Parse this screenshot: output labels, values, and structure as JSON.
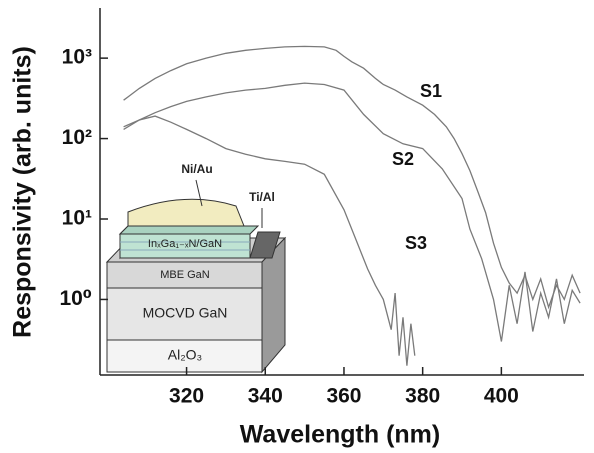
{
  "chart_data": {
    "type": "line",
    "x_label": "Wavelength (nm)",
    "y_label": "Responsivity (arb. units)",
    "log_y": true,
    "xlim": [
      298,
      421
    ],
    "ylim": [
      0.115,
      4200
    ],
    "xticks": [
      320,
      340,
      360,
      380,
      400
    ],
    "yticks": [
      {
        "value": 1,
        "label": "10⁰"
      },
      {
        "value": 10,
        "label": "10¹"
      },
      {
        "value": 100,
        "label": "10²"
      },
      {
        "value": 1000,
        "label": "10³"
      }
    ],
    "series": [
      {
        "name": "S1",
        "color": "#7a7a7a",
        "x": [
          304,
          308,
          312,
          316,
          320,
          325,
          330,
          335,
          340,
          345,
          350,
          355,
          358,
          360,
          362,
          365,
          368,
          370,
          373,
          376,
          380,
          383,
          386,
          388,
          390,
          392,
          394,
          396,
          398,
          400,
          402,
          404,
          406,
          408,
          410,
          412,
          414,
          416,
          418,
          420
        ],
        "values": [
          300,
          420,
          560,
          700,
          850,
          1000,
          1150,
          1250,
          1320,
          1380,
          1400,
          1380,
          1250,
          1050,
          900,
          750,
          560,
          470,
          400,
          330,
          260,
          200,
          140,
          100,
          65,
          40,
          22,
          12,
          5,
          2.5,
          1.6,
          1.2,
          2.0,
          1.0,
          1.8,
          0.8,
          1.5,
          1.0,
          2.0,
          1.2
        ]
      },
      {
        "name": "S2",
        "color": "#7a7a7a",
        "x": [
          304,
          308,
          312,
          316,
          320,
          325,
          330,
          335,
          340,
          345,
          350,
          355,
          360,
          365,
          370,
          375,
          380,
          385,
          390,
          392,
          395,
          398,
          400,
          402,
          404,
          406,
          408,
          410,
          412,
          414,
          416,
          418,
          420
        ],
        "values": [
          140,
          170,
          210,
          250,
          290,
          330,
          370,
          400,
          420,
          460,
          490,
          470,
          400,
          200,
          115,
          86,
          75,
          42,
          18,
          7.5,
          3.2,
          1.0,
          0.3,
          1.5,
          0.5,
          2.2,
          0.4,
          1.2,
          0.6,
          1.8,
          0.5,
          1.3,
          0.9
        ]
      },
      {
        "name": "S3",
        "color": "#7a7a7a",
        "x": [
          304,
          308,
          312,
          316,
          320,
          325,
          330,
          335,
          340,
          345,
          350,
          355,
          360,
          363,
          366,
          368,
          370,
          372,
          373,
          374,
          375,
          376,
          377,
          378
        ],
        "values": [
          130,
          170,
          190,
          160,
          130,
          100,
          75,
          64,
          56,
          52,
          48,
          36,
          13,
          5.6,
          2.4,
          1.5,
          1.0,
          0.42,
          1.2,
          0.2,
          0.6,
          0.15,
          0.5,
          0.2
        ]
      }
    ],
    "inset_labels": [
      "Ni/Au",
      "Ti/Al",
      "InₓGa₁₋ₓN/GaN",
      "MBE GaN",
      "MOCVD GaN",
      "Al₂O₃"
    ]
  }
}
